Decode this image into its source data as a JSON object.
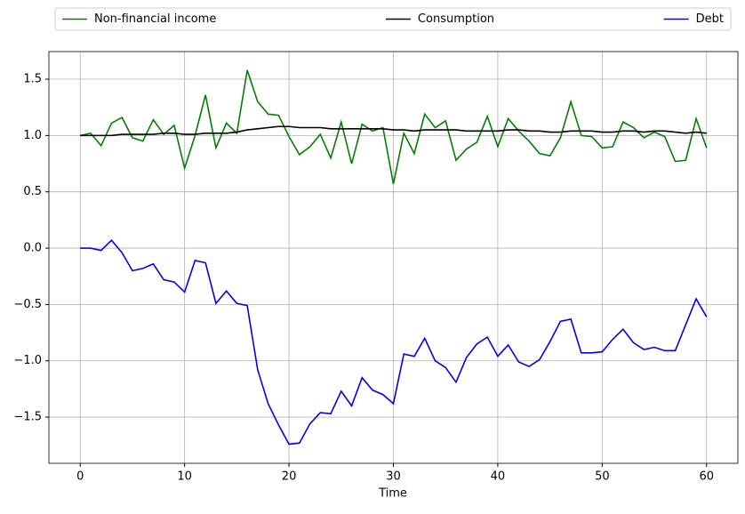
{
  "chart_data": {
    "type": "line",
    "xlabel": "Time",
    "x": [
      0,
      1,
      2,
      3,
      4,
      5,
      6,
      7,
      8,
      9,
      10,
      11,
      12,
      13,
      14,
      15,
      16,
      17,
      18,
      19,
      20,
      21,
      22,
      23,
      24,
      25,
      26,
      27,
      28,
      29,
      30,
      31,
      32,
      33,
      34,
      35,
      36,
      37,
      38,
      39,
      40,
      41,
      42,
      43,
      44,
      45,
      46,
      47,
      48,
      49,
      50,
      51,
      52,
      53,
      54,
      55,
      56,
      57,
      58,
      59,
      60
    ],
    "series": [
      {
        "name": "Non-financial income",
        "color": "#008000",
        "values": [
          1.0,
          1.02,
          0.91,
          1.11,
          1.16,
          0.98,
          0.95,
          1.14,
          1.01,
          1.09,
          0.71,
          1.0,
          1.36,
          0.89,
          1.11,
          1.02,
          1.58,
          1.3,
          1.19,
          1.18,
          0.99,
          0.83,
          0.9,
          1.01,
          0.8,
          1.12,
          0.75,
          1.1,
          1.04,
          1.07,
          0.57,
          1.02,
          0.84,
          1.19,
          1.07,
          1.13,
          0.78,
          0.88,
          0.94,
          1.17,
          0.9,
          1.15,
          1.04,
          0.95,
          0.84,
          0.82,
          0.98,
          1.3,
          1.0,
          0.99,
          0.89,
          0.9,
          1.12,
          1.07,
          0.98,
          1.03,
          0.99,
          0.77,
          0.78,
          1.15,
          0.89
        ]
      },
      {
        "name": "Consumption",
        "color": "#000000",
        "values": [
          1.0,
          1.0,
          1.0,
          1.0,
          1.01,
          1.01,
          1.01,
          1.01,
          1.02,
          1.02,
          1.01,
          1.01,
          1.02,
          1.02,
          1.02,
          1.03,
          1.05,
          1.06,
          1.07,
          1.08,
          1.08,
          1.07,
          1.07,
          1.07,
          1.06,
          1.06,
          1.06,
          1.06,
          1.06,
          1.06,
          1.05,
          1.05,
          1.04,
          1.05,
          1.05,
          1.05,
          1.05,
          1.04,
          1.04,
          1.04,
          1.04,
          1.05,
          1.05,
          1.04,
          1.04,
          1.03,
          1.03,
          1.04,
          1.04,
          1.04,
          1.03,
          1.03,
          1.04,
          1.04,
          1.03,
          1.04,
          1.04,
          1.03,
          1.02,
          1.03,
          1.02
        ]
      },
      {
        "name": "Debt",
        "color": "#0000ff",
        "values": [
          0,
          0,
          -0.02,
          0.07,
          -0.04,
          -0.2,
          -0.18,
          -0.14,
          -0.28,
          -0.3,
          -0.39,
          -0.11,
          -0.13,
          -0.49,
          -0.38,
          -0.49,
          -0.51,
          -1.08,
          -1.38,
          -1.57,
          -1.74,
          -1.73,
          -1.56,
          -1.46,
          -1.47,
          -1.27,
          -1.4,
          -1.15,
          -1.26,
          -1.3,
          -1.38,
          -0.94,
          -0.96,
          -0.8,
          -1.0,
          -1.06,
          -1.19,
          -0.97,
          -0.85,
          -0.79,
          -0.96,
          -0.86,
          -1.01,
          -1.05,
          -0.99,
          -0.83,
          -0.65,
          -0.63,
          -0.93,
          -0.93,
          -0.92,
          -0.81,
          -0.72,
          -0.84,
          -0.9,
          -0.88,
          -0.91,
          -0.91,
          -0.68,
          -0.45,
          -0.61
        ]
      }
    ],
    "xlim": [
      -3,
      63
    ],
    "xticks": [
      0,
      10,
      20,
      30,
      40,
      50,
      60
    ],
    "ylim": [
      -1.91,
      1.745
    ],
    "yticks": [
      {
        "value": -1.5,
        "label": "−1.5"
      },
      {
        "value": -1.0,
        "label": "−1.0"
      },
      {
        "value": -0.5,
        "label": "−0.5"
      },
      {
        "value": 0,
        "label": "0.0"
      },
      {
        "value": 0.5,
        "label": "0.5"
      },
      {
        "value": 1.0,
        "label": "1.0"
      },
      {
        "value": 1.5,
        "label": "1.5"
      }
    ],
    "grid": true,
    "legend": "top"
  }
}
